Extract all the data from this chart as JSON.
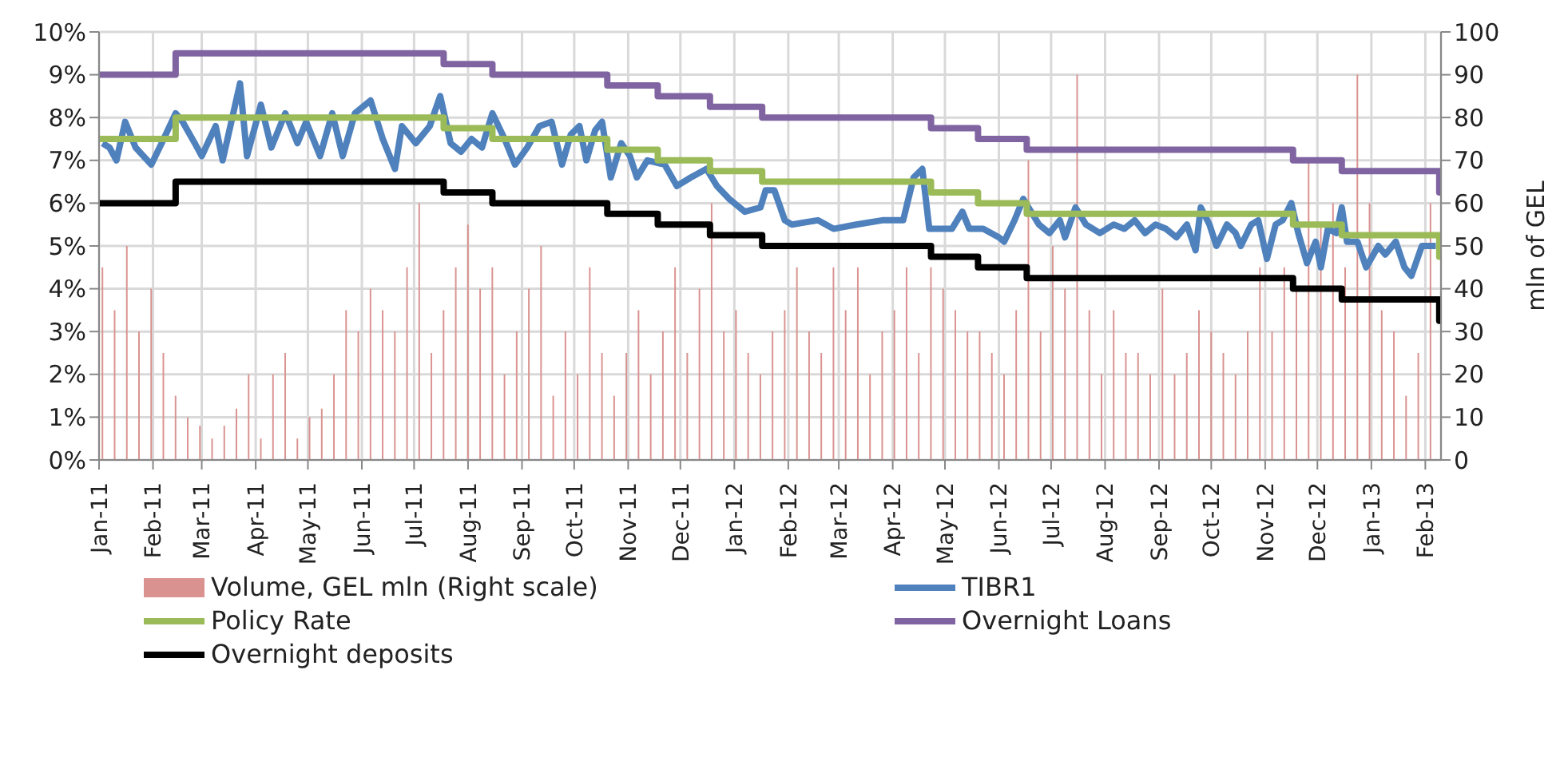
{
  "chart_data": {
    "type": "line",
    "y2label": "mln of GEL",
    "grid": true,
    "legend": "bottom",
    "xlim": [
      "2011-01-01",
      "2013-02-10"
    ],
    "xticks": [
      {
        "value": "2011-01-01",
        "label": "Jan-11"
      },
      {
        "value": "2011-02-01",
        "label": "Feb-11"
      },
      {
        "value": "2011-03-01",
        "label": "Mar-11"
      },
      {
        "value": "2011-04-01",
        "label": "Apr-11"
      },
      {
        "value": "2011-05-01",
        "label": "May-11"
      },
      {
        "value": "2011-06-01",
        "label": "Jun-11"
      },
      {
        "value": "2011-07-01",
        "label": "Jul-11"
      },
      {
        "value": "2011-08-01",
        "label": "Aug-11"
      },
      {
        "value": "2011-09-01",
        "label": "Sep-11"
      },
      {
        "value": "2011-10-01",
        "label": "Oct-11"
      },
      {
        "value": "2011-11-01",
        "label": "Nov-11"
      },
      {
        "value": "2011-12-01",
        "label": "Dec-11"
      },
      {
        "value": "2012-01-01",
        "label": "Jan-12"
      },
      {
        "value": "2012-02-01",
        "label": "Feb-12"
      },
      {
        "value": "2012-03-01",
        "label": "Mar-12"
      },
      {
        "value": "2012-04-01",
        "label": "Apr-12"
      },
      {
        "value": "2012-05-01",
        "label": "May-12"
      },
      {
        "value": "2012-06-01",
        "label": "Jun-12"
      },
      {
        "value": "2012-07-01",
        "label": "Jul-12"
      },
      {
        "value": "2012-08-01",
        "label": "Aug-12"
      },
      {
        "value": "2012-09-01",
        "label": "Sep-12"
      },
      {
        "value": "2012-10-01",
        "label": "Oct-12"
      },
      {
        "value": "2012-11-01",
        "label": "Nov-12"
      },
      {
        "value": "2012-12-01",
        "label": "Dec-12"
      },
      {
        "value": "2013-01-01",
        "label": "Jan-13"
      },
      {
        "value": "2013-02-01",
        "label": "Feb-13"
      }
    ],
    "ylim": [
      0,
      10
    ],
    "yticks": [
      {
        "value": 0,
        "label": "0%"
      },
      {
        "value": 1,
        "label": "1%"
      },
      {
        "value": 2,
        "label": "2%"
      },
      {
        "value": 3,
        "label": "3%"
      },
      {
        "value": 4,
        "label": "4%"
      },
      {
        "value": 5,
        "label": "5%"
      },
      {
        "value": 6,
        "label": "6%"
      },
      {
        "value": 7,
        "label": "7%"
      },
      {
        "value": 8,
        "label": "8%"
      },
      {
        "value": 9,
        "label": "9%"
      },
      {
        "value": 10,
        "label": "10%"
      }
    ],
    "y2lim": [
      0,
      100
    ],
    "y2ticks": [
      0,
      10,
      20,
      30,
      40,
      50,
      60,
      70,
      80,
      90,
      100
    ],
    "series": [
      {
        "name": "Volume, GEL mln (Right scale)",
        "type": "bar",
        "axis": "y2",
        "color": "#d9928f",
        "x": [
          "2011-01-03",
          "2011-01-10",
          "2011-01-17",
          "2011-01-24",
          "2011-01-31",
          "2011-02-07",
          "2011-02-14",
          "2011-02-21",
          "2011-02-28",
          "2011-03-07",
          "2011-03-14",
          "2011-03-21",
          "2011-03-28",
          "2011-04-04",
          "2011-04-11",
          "2011-04-18",
          "2011-04-25",
          "2011-05-02",
          "2011-05-09",
          "2011-05-16",
          "2011-05-23",
          "2011-05-30",
          "2011-06-06",
          "2011-06-13",
          "2011-06-20",
          "2011-06-27",
          "2011-07-04",
          "2011-07-11",
          "2011-07-18",
          "2011-07-25",
          "2011-08-01",
          "2011-08-08",
          "2011-08-15",
          "2011-08-22",
          "2011-08-29",
          "2011-09-05",
          "2011-09-12",
          "2011-09-19",
          "2011-09-26",
          "2011-10-03",
          "2011-10-10",
          "2011-10-17",
          "2011-10-24",
          "2011-10-31",
          "2011-11-07",
          "2011-11-14",
          "2011-11-21",
          "2011-11-28",
          "2011-12-05",
          "2011-12-12",
          "2011-12-19",
          "2011-12-26",
          "2012-01-02",
          "2012-01-09",
          "2012-01-16",
          "2012-01-23",
          "2012-01-30",
          "2012-02-06",
          "2012-02-13",
          "2012-02-20",
          "2012-02-27",
          "2012-03-05",
          "2012-03-12",
          "2012-03-19",
          "2012-03-26",
          "2012-04-02",
          "2012-04-09",
          "2012-04-16",
          "2012-04-23",
          "2012-04-30",
          "2012-05-07",
          "2012-05-14",
          "2012-05-21",
          "2012-05-28",
          "2012-06-04",
          "2012-06-11",
          "2012-06-18",
          "2012-06-25",
          "2012-07-02",
          "2012-07-09",
          "2012-07-16",
          "2012-07-23",
          "2012-07-30",
          "2012-08-06",
          "2012-08-13",
          "2012-08-20",
          "2012-08-27",
          "2012-09-03",
          "2012-09-10",
          "2012-09-17",
          "2012-09-24",
          "2012-10-01",
          "2012-10-08",
          "2012-10-15",
          "2012-10-22",
          "2012-10-29",
          "2012-11-05",
          "2012-11-12",
          "2012-11-19",
          "2012-11-26",
          "2012-12-03",
          "2012-12-10",
          "2012-12-17",
          "2012-12-24",
          "2012-12-31",
          "2013-01-07",
          "2013-01-14",
          "2013-01-21",
          "2013-01-28",
          "2013-02-04"
        ],
        "values": [
          45,
          35,
          50,
          30,
          40,
          25,
          15,
          10,
          8,
          5,
          8,
          12,
          20,
          5,
          20,
          25,
          5,
          10,
          12,
          20,
          35,
          30,
          40,
          35,
          30,
          45,
          60,
          25,
          35,
          45,
          55,
          40,
          45,
          20,
          30,
          40,
          50,
          15,
          30,
          20,
          45,
          25,
          15,
          25,
          35,
          20,
          30,
          45,
          25,
          40,
          60,
          30,
          35,
          25,
          20,
          30,
          35,
          45,
          30,
          25,
          45,
          35,
          45,
          20,
          30,
          35,
          45,
          25,
          45,
          40,
          35,
          30,
          30,
          25,
          20,
          35,
          70,
          30,
          50,
          40,
          90,
          35,
          20,
          35,
          25,
          25,
          20,
          40,
          20,
          25,
          35,
          30,
          25,
          20,
          30,
          45,
          30,
          45,
          40,
          70,
          55,
          60,
          45,
          90,
          60,
          35,
          30,
          15,
          25,
          60
        ]
      },
      {
        "name": "TIBR1",
        "color": "#4f81bd",
        "x": [
          "2011-01-03",
          "2011-01-07",
          "2011-01-11",
          "2011-01-16",
          "2011-01-22",
          "2011-01-31",
          "2011-02-06",
          "2011-02-14",
          "2011-02-18",
          "2011-02-25",
          "2011-03-01",
          "2011-03-09",
          "2011-03-13",
          "2011-03-23",
          "2011-03-27",
          "2011-04-04",
          "2011-04-10",
          "2011-04-18",
          "2011-04-25",
          "2011-04-30",
          "2011-05-08",
          "2011-05-15",
          "2011-05-21",
          "2011-05-28",
          "2011-06-06",
          "2011-06-13",
          "2011-06-20",
          "2011-06-24",
          "2011-07-02",
          "2011-07-10",
          "2011-07-16",
          "2011-07-22",
          "2011-07-28",
          "2011-08-03",
          "2011-08-09",
          "2011-08-15",
          "2011-08-22",
          "2011-08-28",
          "2011-09-04",
          "2011-09-11",
          "2011-09-18",
          "2011-09-24",
          "2011-09-29",
          "2011-10-04",
          "2011-10-08",
          "2011-10-13",
          "2011-10-17",
          "2011-10-22",
          "2011-10-28",
          "2011-11-02",
          "2011-11-06",
          "2011-11-12",
          "2011-11-22",
          "2011-11-29",
          "2011-12-07",
          "2011-12-16",
          "2011-12-22",
          "2011-12-29",
          "2012-01-07",
          "2012-01-16",
          "2012-01-19",
          "2012-01-24",
          "2012-01-30",
          "2012-02-03",
          "2012-02-18",
          "2012-02-27",
          "2012-03-11",
          "2012-03-26",
          "2012-04-07",
          "2012-04-13",
          "2012-04-18",
          "2012-04-22",
          "2012-05-05",
          "2012-05-11",
          "2012-05-15",
          "2012-05-23",
          "2012-06-01",
          "2012-06-04",
          "2012-06-10",
          "2012-06-15",
          "2012-06-18",
          "2012-06-24",
          "2012-06-30",
          "2012-07-06",
          "2012-07-09",
          "2012-07-15",
          "2012-07-21",
          "2012-07-29",
          "2012-08-06",
          "2012-08-12",
          "2012-08-18",
          "2012-08-24",
          "2012-08-30",
          "2012-09-05",
          "2012-09-11",
          "2012-09-17",
          "2012-09-22",
          "2012-09-25",
          "2012-09-30",
          "2012-10-04",
          "2012-10-10",
          "2012-10-15",
          "2012-10-18",
          "2012-10-24",
          "2012-10-28",
          "2012-11-02",
          "2012-11-07",
          "2012-11-11",
          "2012-11-16",
          "2012-11-20",
          "2012-11-25",
          "2012-11-30",
          "2012-12-03",
          "2012-12-07",
          "2012-12-12",
          "2012-12-15",
          "2012-12-18",
          "2012-12-24",
          "2012-12-29",
          "2013-01-05",
          "2013-01-09",
          "2013-01-15",
          "2013-01-20",
          "2013-01-24",
          "2013-01-30",
          "2013-02-07"
        ],
        "values": [
          7.4,
          7.3,
          7.0,
          7.9,
          7.3,
          6.9,
          7.4,
          8.1,
          7.9,
          7.4,
          7.1,
          7.8,
          7.0,
          8.8,
          7.1,
          8.3,
          7.3,
          8.1,
          7.4,
          7.9,
          7.1,
          8.1,
          7.1,
          8.1,
          8.4,
          7.5,
          6.8,
          7.8,
          7.4,
          7.8,
          8.5,
          7.4,
          7.2,
          7.5,
          7.3,
          8.1,
          7.5,
          6.9,
          7.3,
          7.8,
          7.9,
          6.9,
          7.6,
          7.8,
          7.0,
          7.7,
          7.9,
          6.6,
          7.4,
          7.1,
          6.6,
          7.0,
          6.9,
          6.4,
          6.6,
          6.8,
          6.4,
          6.1,
          5.8,
          5.9,
          6.3,
          6.3,
          5.6,
          5.5,
          5.6,
          5.4,
          5.5,
          5.6,
          5.6,
          6.6,
          6.8,
          5.4,
          5.4,
          5.8,
          5.4,
          5.4,
          5.2,
          5.1,
          5.6,
          6.1,
          5.9,
          5.5,
          5.3,
          5.6,
          5.2,
          5.9,
          5.5,
          5.3,
          5.5,
          5.4,
          5.6,
          5.3,
          5.5,
          5.4,
          5.2,
          5.5,
          4.9,
          5.9,
          5.5,
          5.0,
          5.5,
          5.3,
          5.0,
          5.5,
          5.6,
          4.7,
          5.5,
          5.6,
          6.0,
          5.3,
          4.6,
          5.1,
          4.5,
          5.4,
          5.3,
          5.9,
          5.1,
          5.1,
          4.5,
          5.0,
          4.8,
          5.1,
          4.5,
          4.3,
          5.0,
          5.0
        ]
      },
      {
        "name": "Policy Rate",
        "type": "step",
        "color": "#9bbb59",
        "x": [
          "2011-01-01",
          "2011-02-14",
          "2011-07-18",
          "2011-08-15",
          "2011-10-20",
          "2011-11-18",
          "2011-12-18",
          "2012-01-17",
          "2012-04-23",
          "2012-05-20",
          "2012-06-17",
          "2012-11-17",
          "2012-12-15",
          "2013-02-09",
          "2013-02-10"
        ],
        "values": [
          7.5,
          8,
          7.75,
          7.5,
          7.25,
          7,
          6.75,
          6.5,
          6.25,
          6,
          5.75,
          5.5,
          5.25,
          4.75,
          4.75
        ]
      },
      {
        "name": "Overnight Loans",
        "type": "step",
        "color": "#8064a2",
        "x": [
          "2011-01-01",
          "2011-02-14",
          "2011-07-18",
          "2011-08-15",
          "2011-10-20",
          "2011-11-18",
          "2011-12-18",
          "2012-01-17",
          "2012-04-23",
          "2012-05-20",
          "2012-06-17",
          "2012-11-17",
          "2012-12-15",
          "2013-02-09",
          "2013-02-10"
        ],
        "values": [
          9,
          9.5,
          9.25,
          9,
          8.75,
          8.5,
          8.25,
          8,
          7.75,
          7.5,
          7.25,
          7,
          6.75,
          6.25,
          6.25
        ]
      },
      {
        "name": "Overnight deposits",
        "type": "step",
        "color": "#000000",
        "x": [
          "2011-01-01",
          "2011-02-14",
          "2011-07-18",
          "2011-08-15",
          "2011-10-20",
          "2011-11-18",
          "2011-12-18",
          "2012-01-17",
          "2012-04-23",
          "2012-05-20",
          "2012-06-17",
          "2012-11-17",
          "2012-12-15",
          "2013-02-09",
          "2013-02-10"
        ],
        "values": [
          6,
          6.5,
          6.25,
          6,
          5.75,
          5.5,
          5.25,
          5,
          4.75,
          4.5,
          4.25,
          4,
          3.75,
          3.25,
          3.25
        ]
      }
    ]
  }
}
